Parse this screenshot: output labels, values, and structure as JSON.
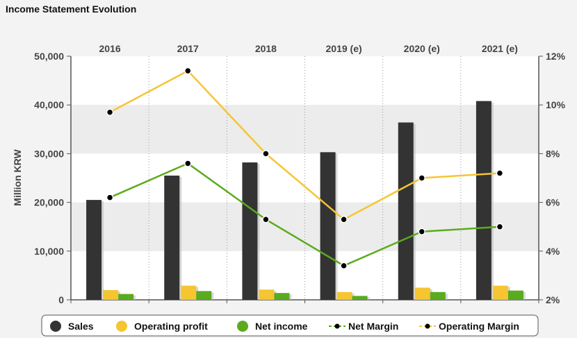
{
  "chart_data": {
    "type": "bar",
    "title": "Income Statement Evolution",
    "categories": [
      "2016",
      "2017",
      "2018",
      "2019 (e)",
      "2020 (e)",
      "2021 (e)"
    ],
    "ylabel": "Million KRW",
    "ylim": [
      0,
      50000
    ],
    "y_ticks": [
      "0",
      "10,000",
      "20,000",
      "30,000",
      "40,000",
      "50,000"
    ],
    "y2lim": [
      2,
      12
    ],
    "y2_ticks": [
      "2%",
      "4%",
      "6%",
      "8%",
      "10%",
      "12%"
    ],
    "grid": "alternating horizontal bands",
    "legend_position": "bottom",
    "series": [
      {
        "name": "Sales",
        "kind": "bar",
        "axis": "left",
        "color": "#333333",
        "values": [
          20500,
          25500,
          28200,
          30300,
          36400,
          40800
        ]
      },
      {
        "name": "Operating profit",
        "kind": "bar",
        "axis": "left",
        "color": "#f5c532",
        "values": [
          2000,
          2900,
          2100,
          1600,
          2500,
          2900
        ]
      },
      {
        "name": "Net income",
        "kind": "bar",
        "axis": "left",
        "color": "#5aab1e",
        "values": [
          1200,
          1800,
          1400,
          800,
          1600,
          1900
        ]
      },
      {
        "name": "Net Margin",
        "kind": "line",
        "axis": "right",
        "color": "#5aab1e",
        "values": [
          6.2,
          7.6,
          5.3,
          3.4,
          4.8,
          5.0
        ]
      },
      {
        "name": "Operating Margin",
        "kind": "line",
        "axis": "right",
        "color": "#f5c532",
        "values": [
          9.7,
          11.4,
          8.0,
          5.3,
          7.0,
          7.2
        ]
      }
    ]
  }
}
